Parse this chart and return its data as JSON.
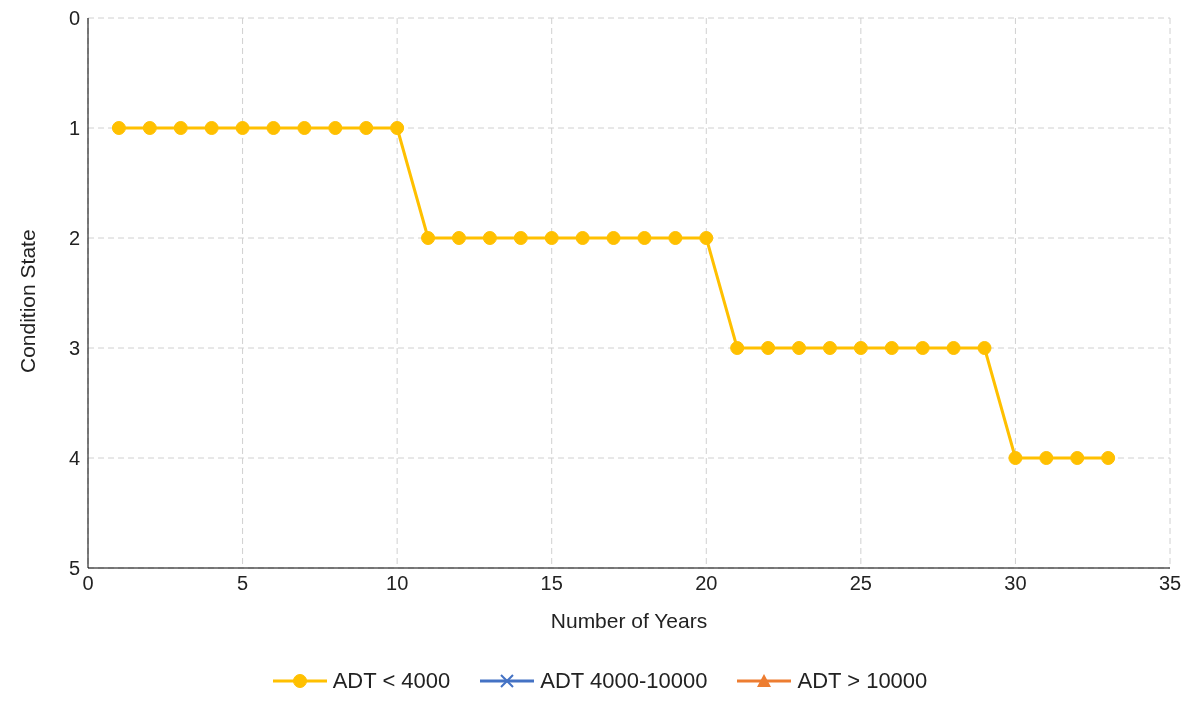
{
  "chart_data": {
    "type": "line",
    "xlabel": "Number of Years",
    "ylabel": "Condition State",
    "x": [
      1,
      2,
      3,
      4,
      5,
      6,
      7,
      8,
      9,
      10,
      11,
      12,
      13,
      14,
      15,
      16,
      17,
      18,
      19,
      20,
      21,
      22,
      23,
      24,
      25,
      26,
      27,
      28,
      29,
      30,
      31,
      32,
      33
    ],
    "series": [
      {
        "name": "ADT < 4000",
        "color": "#ffc000",
        "marker": "circle",
        "values": [
          1,
          1,
          1,
          1,
          1,
          1,
          1,
          1,
          1,
          1,
          2,
          2,
          2,
          2,
          2,
          2,
          2,
          2,
          2,
          2,
          3,
          3,
          3,
          3,
          3,
          3,
          3,
          3,
          3,
          4,
          4,
          4,
          4
        ]
      },
      {
        "name": "ADT 4000-10000",
        "color": "#4472c4",
        "marker": "cross",
        "values": [
          null,
          null,
          null,
          null,
          null,
          null,
          null,
          null,
          null,
          null,
          null,
          null,
          null,
          null,
          null,
          null,
          null,
          null,
          null,
          null,
          null,
          null,
          null,
          null,
          null,
          null,
          null,
          null,
          null,
          null,
          null,
          null,
          null
        ]
      },
      {
        "name": "ADT > 10000",
        "color": "#ed7d31",
        "marker": "triangle",
        "values": [
          null,
          null,
          null,
          null,
          null,
          null,
          null,
          null,
          null,
          null,
          null,
          null,
          null,
          null,
          null,
          null,
          null,
          null,
          null,
          null,
          null,
          null,
          null,
          null,
          null,
          null,
          null,
          null,
          null,
          null,
          null,
          null,
          null
        ]
      }
    ],
    "xlim": [
      0,
      35
    ],
    "xticks": [
      0,
      5,
      10,
      15,
      20,
      25,
      30,
      35
    ],
    "ylim": [
      5,
      0
    ],
    "yticks": [
      0,
      1,
      2,
      3,
      4,
      5
    ],
    "grid": true,
    "legend": "bottom",
    "line_style": "solid"
  }
}
